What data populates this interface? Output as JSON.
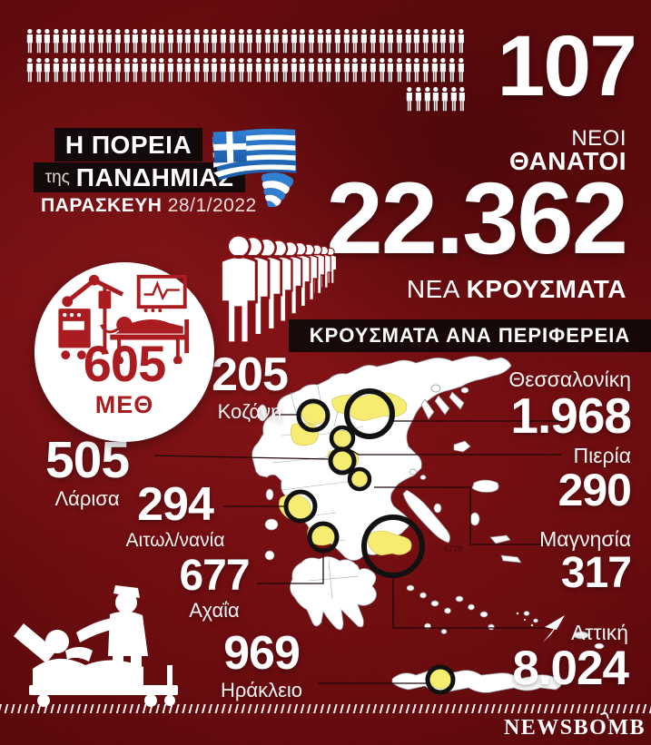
{
  "colors": {
    "background_red": "#871014",
    "dark_bar": "#120a0a",
    "accent_red": "#ab1c20",
    "region_yellow": "#f6ec72",
    "map_white": "#ffffff",
    "ring_black": "#111111",
    "text_white": "#ffffff"
  },
  "header": {
    "deaths_count": "107",
    "deaths_label_line1": "ΝΕΟΙ",
    "deaths_label_line2": "ΘΑΝΑΤΟΙ",
    "pictogram_rows": [
      50,
      50,
      7
    ],
    "title_line1": "Η ΠΟΡΕΙΑ",
    "title_line2_prefix": "της",
    "title_line2": "ΠΑΝΔΗΜΙΑΣ",
    "date_day": "ΠΑΡΑΣΚΕΥΗ",
    "date_value": "28/1/2022",
    "cases_count": "22.362",
    "cases_label_prefix": "ΝΕΑ",
    "cases_label": "ΚΡΟΥΣΜΑΤΑ"
  },
  "icu": {
    "count": "605",
    "label": "ΜΕΘ"
  },
  "section_title": "ΚΡΟΥΣΜΑΤΑ ΑΝΑ ΠΕΡΙΦΕΡΕΙΑ",
  "regions_left": [
    {
      "value": "205",
      "label": "Κοζάνη"
    },
    {
      "value": "505",
      "label": "Λάρισα"
    },
    {
      "value": "294",
      "label": "Αιτωλ/νανία"
    },
    {
      "value": "677",
      "label": "Αχαΐα"
    },
    {
      "value": "969",
      "label": "Ηράκλειο"
    }
  ],
  "regions_right": [
    {
      "label": "Θεσσαλονίκη",
      "value": "1.968"
    },
    {
      "label": "Πιερία",
      "value": "290"
    },
    {
      "label": "Μαγνησία",
      "value": "317"
    },
    {
      "label": "Αττική",
      "value": "8.024"
    }
  ],
  "map": {
    "note": "677Β"
  },
  "footer": {
    "brand_part1": "NEWSB",
    "brand_o": "O",
    "brand_part2": "MB"
  },
  "chart_data": {
    "type": "table",
    "title": "Η ΠΟΡΕΙΑ της ΠΑΝΔΗΜΙΑΣ",
    "date": "ΠΑΡΑΣΚΕΥΗ 28/1/2022",
    "totals": {
      "new_deaths": 107,
      "new_cases": 22362,
      "icu_patients": 605
    },
    "regions": {
      "categories": [
        "Κοζάνη",
        "Λάρισα",
        "Αιτωλ/νανία",
        "Αχαΐα",
        "Ηράκλειο",
        "Θεσσαλονίκη",
        "Πιερία",
        "Μαγνησία",
        "Αττική"
      ],
      "values": [
        205,
        505,
        294,
        677,
        969,
        1968,
        290,
        317,
        8024
      ]
    },
    "deaths_pictogram_rows": [
      50,
      50,
      7
    ]
  }
}
